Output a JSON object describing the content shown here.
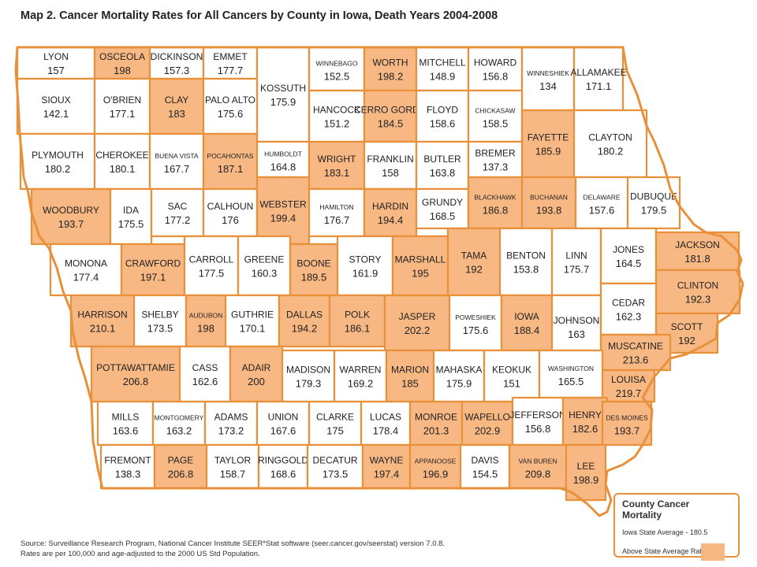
{
  "title": "Map 2.  Cancer Mortality Rates for All Cancers by County in Iowa, Death Years 2004-2008",
  "colors": {
    "above_average": "#f8b884",
    "below_average": "#ffffff",
    "border": "#e8913a"
  },
  "legend": {
    "title": "County Cancer Mortality",
    "state_average": "Iowa State Average - 180.5",
    "above_label": "Above State Average Rate"
  },
  "source": {
    "line1": "Source: Surveillance Research Program, National Cancer Institute SEER*Stat software (seer.cancer.gov/seerstat) version 7.0.8.",
    "line2": "Rates are per 100,000 and age-adjusted to the 2000 US Std Population."
  },
  "counties": [
    {
      "name": "LYON",
      "rate": "157",
      "above": false
    },
    {
      "name": "OSCEOLA",
      "rate": "198",
      "above": true
    },
    {
      "name": "DICKINSON",
      "rate": "157.3",
      "above": false
    },
    {
      "name": "EMMET",
      "rate": "177.7",
      "above": false
    },
    {
      "name": "KOSSUTH",
      "rate": "175.9",
      "above": false
    },
    {
      "name": "WINNEBAGO",
      "rate": "152.5",
      "above": false
    },
    {
      "name": "WORTH",
      "rate": "198.2",
      "above": true
    },
    {
      "name": "MITCHELL",
      "rate": "148.9",
      "above": false
    },
    {
      "name": "HOWARD",
      "rate": "156.8",
      "above": false
    },
    {
      "name": "WINNESHIEK",
      "rate": "134",
      "above": false
    },
    {
      "name": "ALLAMAKEE",
      "rate": "171.1",
      "above": false
    },
    {
      "name": "SIOUX",
      "rate": "142.1",
      "above": false
    },
    {
      "name": "O'BRIEN",
      "rate": "177.1",
      "above": false
    },
    {
      "name": "CLAY",
      "rate": "183",
      "above": true
    },
    {
      "name": "PALO ALTO",
      "rate": "175.6",
      "above": false
    },
    {
      "name": "HANCOCK",
      "rate": "151.2",
      "above": false
    },
    {
      "name": "CERRO GORDO",
      "rate": "184.5",
      "above": true
    },
    {
      "name": "FLOYD",
      "rate": "158.6",
      "above": false
    },
    {
      "name": "CHICKASAW",
      "rate": "158.5",
      "above": false
    },
    {
      "name": "FAYETTE",
      "rate": "185.9",
      "above": true
    },
    {
      "name": "CLAYTON",
      "rate": "180.2",
      "above": false
    },
    {
      "name": "PLYMOUTH",
      "rate": "180.2",
      "above": false
    },
    {
      "name": "CHEROKEE",
      "rate": "180.1",
      "above": false
    },
    {
      "name": "BUENA VISTA",
      "rate": "167.7",
      "above": false
    },
    {
      "name": "POCAHONTAS",
      "rate": "187.1",
      "above": true
    },
    {
      "name": "HUMBOLDT",
      "rate": "164.8",
      "above": false
    },
    {
      "name": "WRIGHT",
      "rate": "183.1",
      "above": true
    },
    {
      "name": "FRANKLIN",
      "rate": "158",
      "above": false
    },
    {
      "name": "BUTLER",
      "rate": "163.8",
      "above": false
    },
    {
      "name": "BREMER",
      "rate": "137.3",
      "above": false
    },
    {
      "name": "WOODBURY",
      "rate": "193.7",
      "above": true
    },
    {
      "name": "IDA",
      "rate": "175.5",
      "above": false
    },
    {
      "name": "SAC",
      "rate": "177.2",
      "above": false
    },
    {
      "name": "CALHOUN",
      "rate": "176",
      "above": false
    },
    {
      "name": "WEBSTER",
      "rate": "199.4",
      "above": true
    },
    {
      "name": "HAMILTON",
      "rate": "176.7",
      "above": false
    },
    {
      "name": "HARDIN",
      "rate": "194.4",
      "above": true
    },
    {
      "name": "GRUNDY",
      "rate": "168.5",
      "above": false
    },
    {
      "name": "BLACKHAWK",
      "rate": "186.8",
      "above": true
    },
    {
      "name": "BUCHANAN",
      "rate": "193.8",
      "above": true
    },
    {
      "name": "DELAWARE",
      "rate": "157.6",
      "above": false
    },
    {
      "name": "DUBUQUE",
      "rate": "179.5",
      "above": false
    },
    {
      "name": "MONONA",
      "rate": "177.4",
      "above": false
    },
    {
      "name": "CRAWFORD",
      "rate": "197.1",
      "above": true
    },
    {
      "name": "CARROLL",
      "rate": "177.5",
      "above": false
    },
    {
      "name": "GREENE",
      "rate": "160.3",
      "above": false
    },
    {
      "name": "BOONE",
      "rate": "189.5",
      "above": true
    },
    {
      "name": "STORY",
      "rate": "161.9",
      "above": false
    },
    {
      "name": "MARSHALL",
      "rate": "195",
      "above": true
    },
    {
      "name": "TAMA",
      "rate": "192",
      "above": true
    },
    {
      "name": "BENTON",
      "rate": "153.8",
      "above": false
    },
    {
      "name": "LINN",
      "rate": "175.7",
      "above": false
    },
    {
      "name": "JONES",
      "rate": "164.5",
      "above": false
    },
    {
      "name": "JACKSON",
      "rate": "181.8",
      "above": true
    },
    {
      "name": "CLINTON",
      "rate": "192.3",
      "above": true
    },
    {
      "name": "HARRISON",
      "rate": "210.1",
      "above": true
    },
    {
      "name": "SHELBY",
      "rate": "173.5",
      "above": false
    },
    {
      "name": "AUDUBON",
      "rate": "198",
      "above": true
    },
    {
      "name": "GUTHRIE",
      "rate": "170.1",
      "above": false
    },
    {
      "name": "DALLAS",
      "rate": "194.2",
      "above": true
    },
    {
      "name": "POLK",
      "rate": "186.1",
      "above": true
    },
    {
      "name": "JASPER",
      "rate": "202.2",
      "above": true
    },
    {
      "name": "POWESHIEK",
      "rate": "175.6",
      "above": false
    },
    {
      "name": "IOWA",
      "rate": "188.4",
      "above": true
    },
    {
      "name": "JOHNSON",
      "rate": "163",
      "above": false
    },
    {
      "name": "CEDAR",
      "rate": "162.3",
      "above": false
    },
    {
      "name": "SCOTT",
      "rate": "192",
      "above": true
    },
    {
      "name": "MUSCATINE",
      "rate": "213.6",
      "above": true
    },
    {
      "name": "POTTAWATTAMIE",
      "rate": "206.8",
      "above": true
    },
    {
      "name": "CASS",
      "rate": "162.6",
      "above": false
    },
    {
      "name": "ADAIR",
      "rate": "200",
      "above": true
    },
    {
      "name": "MADISON",
      "rate": "179.3",
      "above": false
    },
    {
      "name": "WARREN",
      "rate": "169.2",
      "above": false
    },
    {
      "name": "MARION",
      "rate": "185",
      "above": true
    },
    {
      "name": "MAHASKA",
      "rate": "175.9",
      "above": false
    },
    {
      "name": "KEOKUK",
      "rate": "151",
      "above": false
    },
    {
      "name": "WASHINGTON",
      "rate": "165.5",
      "above": false
    },
    {
      "name": "LOUISA",
      "rate": "219.7",
      "above": true
    },
    {
      "name": "MILLS",
      "rate": "163.6",
      "above": false
    },
    {
      "name": "MONTGOMERY",
      "rate": "163.2",
      "above": false
    },
    {
      "name": "ADAMS",
      "rate": "173.2",
      "above": false
    },
    {
      "name": "UNION",
      "rate": "167.6",
      "above": false
    },
    {
      "name": "CLARKE",
      "rate": "175",
      "above": false
    },
    {
      "name": "LUCAS",
      "rate": "178.4",
      "above": false
    },
    {
      "name": "MONROE",
      "rate": "201.3",
      "above": true
    },
    {
      "name": "WAPELLO",
      "rate": "202.9",
      "above": true
    },
    {
      "name": "JEFFERSON",
      "rate": "156.8",
      "above": false
    },
    {
      "name": "HENRY",
      "rate": "182.6",
      "above": true
    },
    {
      "name": "DES MOINES",
      "rate": "193.7",
      "above": true
    },
    {
      "name": "FREMONT",
      "rate": "138.3",
      "above": false
    },
    {
      "name": "PAGE",
      "rate": "206.8",
      "above": true
    },
    {
      "name": "TAYLOR",
      "rate": "158.7",
      "above": false
    },
    {
      "name": "RINGGOLD",
      "rate": "168.6",
      "above": false
    },
    {
      "name": "DECATUR",
      "rate": "173.5",
      "above": false
    },
    {
      "name": "WAYNE",
      "rate": "197.4",
      "above": true
    },
    {
      "name": "APPANOOSE",
      "rate": "196.9",
      "above": true
    },
    {
      "name": "DAVIS",
      "rate": "154.5",
      "above": false
    },
    {
      "name": "VAN BUREN",
      "rate": "209.8",
      "above": true
    },
    {
      "name": "LEE",
      "rate": "198.9",
      "above": true
    }
  ]
}
